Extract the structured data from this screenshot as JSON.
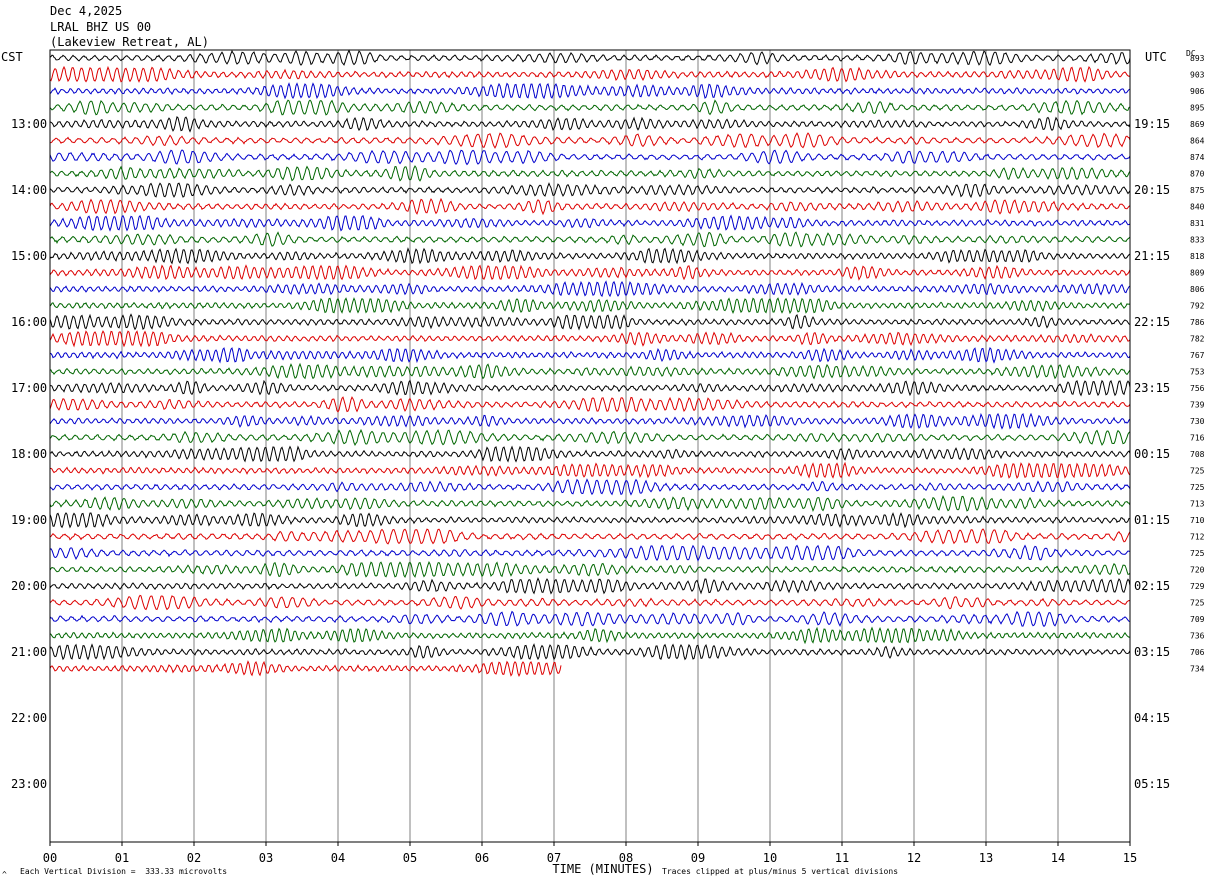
{
  "header": {
    "date": "Dec 4,2025",
    "station": "LRAL BHZ US 00",
    "location": "(Lakeview Retreat, AL)"
  },
  "left_tz": "CST",
  "right_tz": "UTC",
  "dc_label": "DC",
  "footer": {
    "scale_note": "Each Vertical Division =  333.33 microvolts",
    "clip_note": "Traces clipped at plus/minus 5 vertical divisions",
    "corner_mark": "^"
  },
  "colors": {
    "trace_cycle": [
      "#000000",
      "#dd0000",
      "#0000cc",
      "#006600"
    ],
    "grid": "#808080",
    "frame": "#000000"
  },
  "chart_data": {
    "type": "line",
    "title": "LRAL BHZ US 00",
    "xlabel": "TIME (MINUTES)",
    "ylabel": "",
    "xlim": [
      0,
      15
    ],
    "x_ticks": [
      "00",
      "01",
      "02",
      "03",
      "04",
      "05",
      "06",
      "07",
      "08",
      "09",
      "10",
      "11",
      "12",
      "13",
      "14",
      "15"
    ],
    "left_hour_labels": [
      "13:00",
      "14:00",
      "15:00",
      "16:00",
      "17:00",
      "18:00",
      "19:00",
      "20:00",
      "21:00",
      "22:00",
      "23:00"
    ],
    "right_hour_labels": [
      "19:15",
      "20:15",
      "21:15",
      "22:15",
      "23:15",
      "00:15",
      "01:15",
      "02:15",
      "03:15",
      "04:15",
      "05:15"
    ],
    "trace_interval_minutes": 15,
    "traces_per_hour": 4,
    "total_rows": 48,
    "last_trace_minutes": 7.1,
    "dc_offsets": [
      "893",
      "903",
      "906",
      "895",
      "869",
      "864",
      "874",
      "870",
      "875",
      "840",
      "831",
      "833",
      "818",
      "809",
      "806",
      "792",
      "786",
      "782",
      "767",
      "753",
      "756",
      "739",
      "730",
      "716",
      "708",
      "725",
      "725",
      "713",
      "710",
      "712",
      "725",
      "720",
      "729",
      "725",
      "709",
      "736",
      "706",
      "734"
    ],
    "series_note": "Traces cycle black, red, blue, green; clipped at plus/minus 5 vertical divisions"
  }
}
